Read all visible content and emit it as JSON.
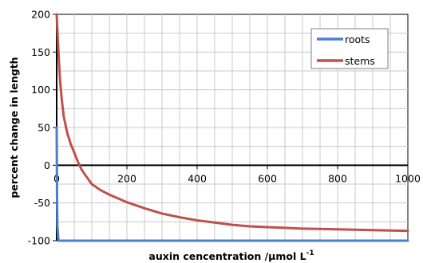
{
  "chart_data": {
    "type": "line",
    "title": "",
    "xlabel": "auxin cencentration /µmol L",
    "xlabel_superscript": "-1",
    "ylabel": "percent change in length",
    "xlim": [
      0,
      1000
    ],
    "ylim": [
      -100,
      200
    ],
    "x_ticks": [
      0,
      200,
      400,
      600,
      800,
      1000
    ],
    "x_tick_labels": [
      "0",
      "200",
      "400",
      "600",
      "800",
      "1000"
    ],
    "y_ticks": [
      -100,
      -50,
      0,
      50,
      100,
      150,
      200
    ],
    "y_tick_labels": [
      "-100",
      "-50",
      "0",
      "50",
      "100",
      "150",
      "200"
    ],
    "x_gridline_step": 50,
    "y_gridline_step": 25,
    "grid": true,
    "legend_position": "top-right",
    "series": [
      {
        "name": "roots",
        "color": "#4a7fd0",
        "x": [
          0,
          0.5,
          1,
          2,
          5,
          10,
          50,
          100,
          200,
          400,
          600,
          800,
          1000
        ],
        "y": [
          50,
          5,
          -40,
          -80,
          -100,
          -100,
          -100,
          -100,
          -100,
          -100,
          -100,
          -100,
          -100
        ]
      },
      {
        "name": "stems",
        "color": "#c0504d",
        "x": [
          0,
          2,
          5,
          10,
          15,
          20,
          30,
          40,
          50,
          60,
          70,
          80,
          100,
          125,
          150,
          175,
          200,
          250,
          300,
          350,
          400,
          450,
          500,
          550,
          600,
          650,
          700,
          800,
          900,
          1000
        ],
        "y": [
          200,
          180,
          150,
          110,
          85,
          65,
          43,
          28,
          17,
          5,
          -5,
          -12,
          -25,
          -33,
          -39,
          -44,
          -49,
          -57,
          -64,
          -69,
          -73,
          -76,
          -79,
          -81,
          -82,
          -83,
          -84,
          -85,
          -86,
          -87
        ]
      }
    ]
  }
}
